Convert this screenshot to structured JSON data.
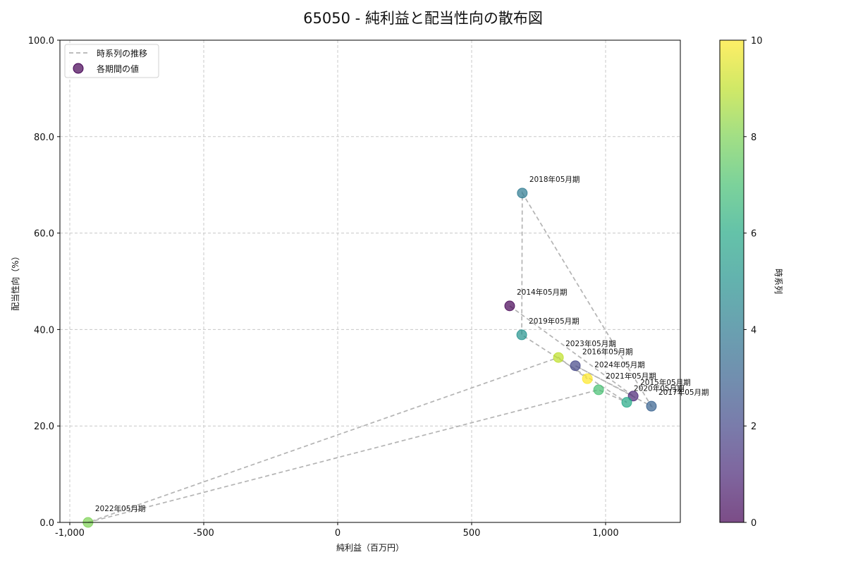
{
  "title": "65050 - 純利益と配当性向の散布図",
  "chart_data": {
    "type": "scatter",
    "title": "65050 - 純利益と配当性向の散布図",
    "xlabel": "純利益（百万円）",
    "ylabel": "配当性向（%）",
    "xlim": [
      -1040,
      1275
    ],
    "ylim": [
      0,
      100
    ],
    "xticks": [
      -1000,
      -500,
      0,
      500,
      1000
    ],
    "xtick_labels": [
      "-1,000",
      "-500",
      "0",
      "500",
      "1,000"
    ],
    "yticks": [
      0,
      20,
      40,
      60,
      80,
      100
    ],
    "ytick_labels": [
      "0.0",
      "20.0",
      "40.0",
      "60.0",
      "80.0",
      "100.0"
    ],
    "grid": true,
    "legend": {
      "position": "upper left",
      "entries": [
        "時系列の推移",
        "各期間の値"
      ]
    },
    "colorbar": {
      "label": "時系列",
      "range": [
        0,
        10
      ],
      "ticks": [
        0,
        2,
        4,
        6,
        8,
        10
      ],
      "colormap": "viridis"
    },
    "points": [
      {
        "label": "2014年05月期",
        "x": 642,
        "y": 44.9,
        "t": 0
      },
      {
        "label": "2015年05月期",
        "x": 1103,
        "y": 26.2,
        "t": 1
      },
      {
        "label": "2016年05月期",
        "x": 887,
        "y": 32.5,
        "t": 2
      },
      {
        "label": "2017年05月期",
        "x": 1171,
        "y": 24.1,
        "t": 3
      },
      {
        "label": "2018年05月期",
        "x": 689,
        "y": 68.3,
        "t": 4
      },
      {
        "label": "2019年05月期",
        "x": 687,
        "y": 38.9,
        "t": 5
      },
      {
        "label": "2020年05月期",
        "x": 1079,
        "y": 24.9,
        "t": 6
      },
      {
        "label": "2021年05月期",
        "x": 974,
        "y": 27.5,
        "t": 7
      },
      {
        "label": "2022年05月期",
        "x": -932,
        "y": 0.0,
        "t": 8
      },
      {
        "label": "2023年05月期",
        "x": 824,
        "y": 34.2,
        "t": 9
      },
      {
        "label": "2024年05月期",
        "x": 932,
        "y": 29.8,
        "t": 10
      }
    ]
  }
}
